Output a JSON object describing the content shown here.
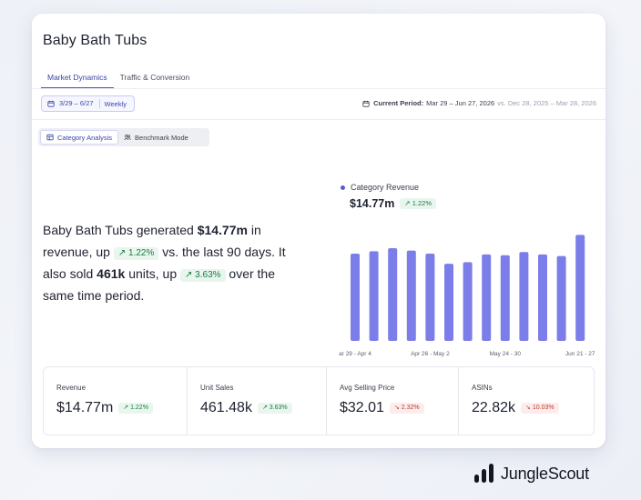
{
  "card": {
    "title": "Baby Bath Tubs",
    "tabs": [
      {
        "label": "Market Dynamics",
        "active": true
      },
      {
        "label": "Traffic & Conversion",
        "active": false
      }
    ],
    "date_chip": {
      "range": "3/29 – 6/27",
      "period": "Weekly"
    },
    "current_period": {
      "label": "Current Period:",
      "value": "Mar 29 – Jun 27, 2026",
      "compare": "vs. Dec 28, 2025 – Mar 28, 2026"
    },
    "modes": [
      {
        "label": "Category Analysis",
        "icon": "table-icon",
        "active": true
      },
      {
        "label": "Benchmark Mode",
        "icon": "users-icon",
        "active": false
      }
    ]
  },
  "summary": {
    "t1": "Baby Bath Tubs generated ",
    "revenue": "$14.77m",
    "t2": " in revenue, up ",
    "rev_change": "↗ 1.22%",
    "t3": " vs. the last 90 days. It also sold ",
    "units": "461k",
    "t4": " units, up ",
    "units_change": "↗ 3.63%",
    "t5": " over the same time period."
  },
  "chart_header": {
    "series_name": "Category Revenue",
    "value": "$14.77m",
    "change": "↗ 1.22%"
  },
  "chart_data": {
    "type": "bar",
    "series": [
      {
        "name": "Category Revenue",
        "values": [
          1.12,
          1.15,
          1.19,
          1.16,
          1.12,
          0.99,
          1.01,
          1.11,
          1.1,
          1.14,
          1.11,
          1.09,
          1.36
        ]
      }
    ],
    "tick_labels": [
      "ar 29 - Apr 4",
      "Apr 26 - May 2",
      "May 24 - 30",
      "Jun 21 - 27"
    ],
    "tick_positions": [
      0,
      4,
      8,
      12
    ],
    "ylim": [
      0,
      1.4
    ],
    "grid": false,
    "color": "#7b7ee8"
  },
  "metrics": [
    {
      "label": "Revenue",
      "value": "$14.77m",
      "change": "↗ 1.22%",
      "dir": "up"
    },
    {
      "label": "Unit Sales",
      "value": "461.48k",
      "change": "↗ 3.63%",
      "dir": "up"
    },
    {
      "label": "Avg Selling Price",
      "value": "$32.01",
      "change": "↘ 2.32%",
      "dir": "down"
    },
    {
      "label": "ASINs",
      "value": "22.82k",
      "change": "↘ 10.03%",
      "dir": "down"
    }
  ],
  "brand": {
    "name": "JungleScout",
    "icon": "junglescout-logo-icon"
  }
}
